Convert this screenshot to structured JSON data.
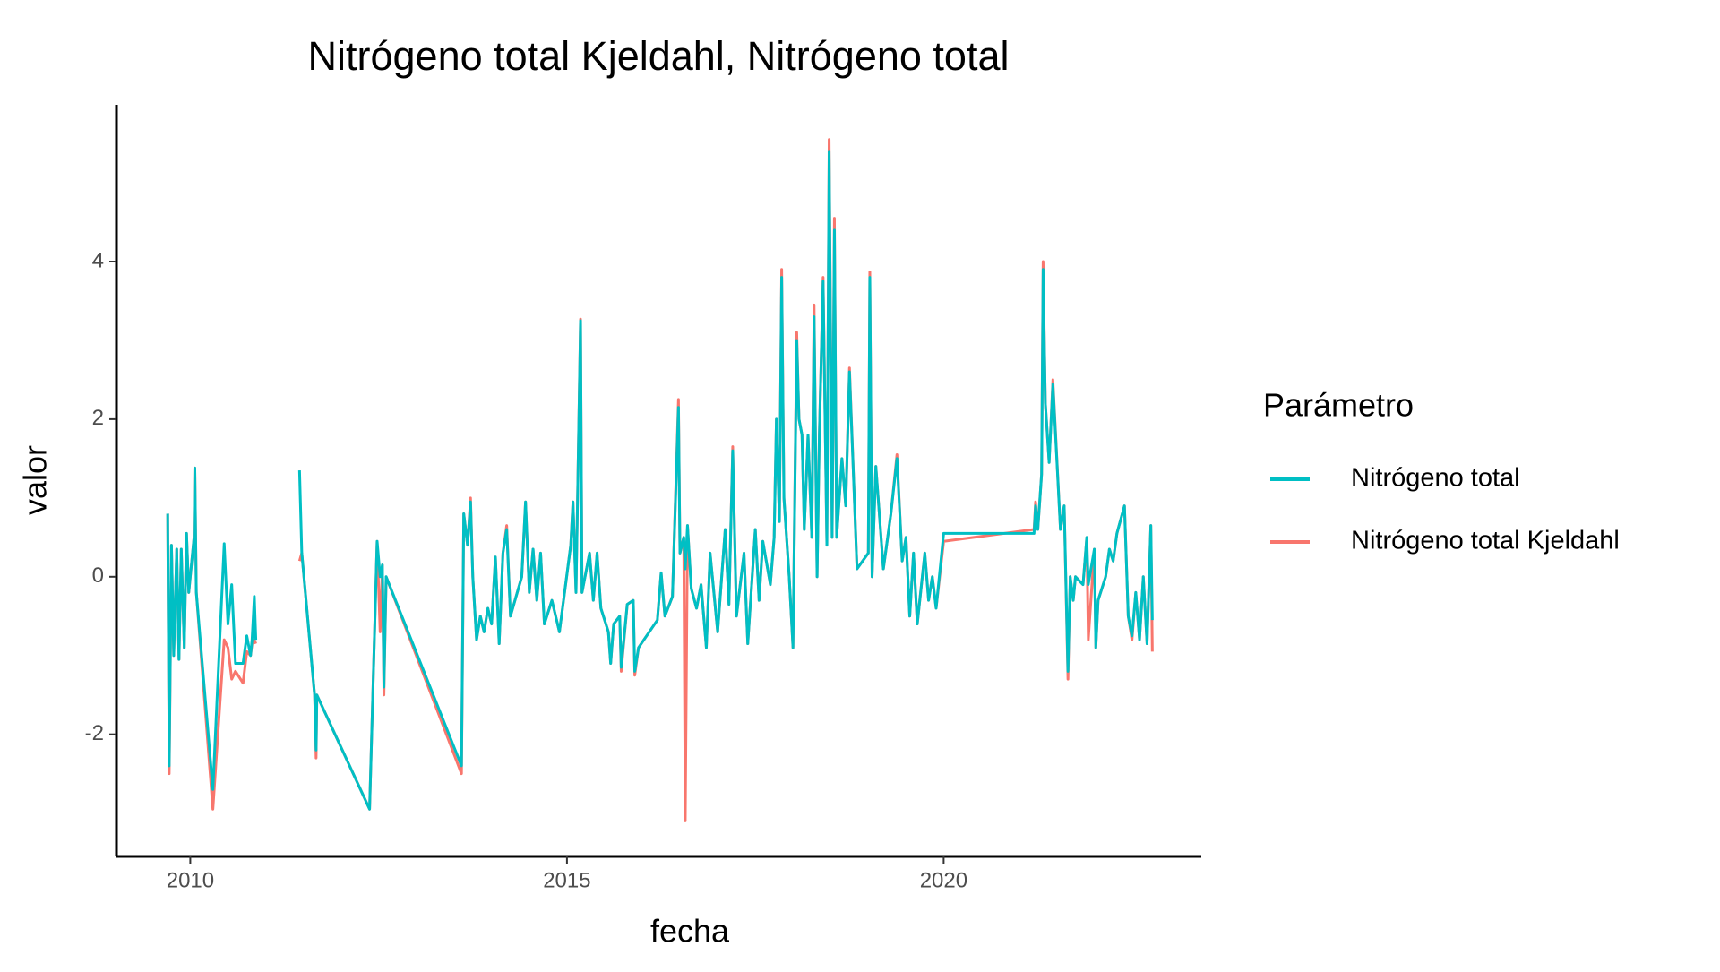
{
  "chart_data": {
    "type": "line",
    "title": "Nitrógeno total Kjeldahl, Nitrógeno total",
    "x_label": "fecha",
    "y_label": "valor",
    "legend_title": "Parámetro",
    "legend_position": "right",
    "grid": false,
    "xlim": [
      2009.02,
      2023.42
    ],
    "ylim": [
      -3.55,
      5.99
    ],
    "xticks": [
      2010,
      2015,
      2020
    ],
    "yticks": [
      -2,
      0,
      2,
      4
    ],
    "x": [
      2009.7,
      2009.72,
      2009.75,
      2009.78,
      2009.82,
      2009.85,
      2009.88,
      2009.92,
      2009.95,
      2009.98,
      2010.05,
      2010.06,
      2010.08,
      2010.3,
      2010.45,
      2010.5,
      2010.55,
      2010.6,
      2010.7,
      2010.75,
      2010.8,
      2010.82,
      2010.85,
      2010.87,
      2011.2,
      2011.45,
      2011.48,
      2011.65,
      2011.67,
      2011.68,
      2012.38,
      2012.48,
      2012.52,
      2012.55,
      2012.57,
      2012.6,
      2013.6,
      2013.63,
      2013.68,
      2013.72,
      2013.75,
      2013.8,
      2013.85,
      2013.9,
      2013.95,
      2014.0,
      2014.05,
      2014.1,
      2014.15,
      2014.2,
      2014.25,
      2014.4,
      2014.45,
      2014.5,
      2014.55,
      2014.6,
      2014.65,
      2014.7,
      2014.8,
      2014.9,
      2015.05,
      2015.08,
      2015.12,
      2015.18,
      2015.2,
      2015.3,
      2015.35,
      2015.4,
      2015.45,
      2015.55,
      2015.58,
      2015.62,
      2015.7,
      2015.72,
      2015.8,
      2015.88,
      2015.9,
      2015.95,
      2016.2,
      2016.25,
      2016.3,
      2016.4,
      2016.48,
      2016.5,
      2016.55,
      2016.57,
      2016.6,
      2016.65,
      2016.72,
      2016.78,
      2016.85,
      2016.9,
      2017.0,
      2017.1,
      2017.15,
      2017.2,
      2017.25,
      2017.35,
      2017.4,
      2017.5,
      2017.55,
      2017.6,
      2017.7,
      2017.75,
      2017.78,
      2017.82,
      2017.85,
      2017.88,
      2017.95,
      2018.0,
      2018.05,
      2018.08,
      2018.12,
      2018.15,
      2018.2,
      2018.25,
      2018.28,
      2018.32,
      2018.35,
      2018.4,
      2018.45,
      2018.48,
      2018.52,
      2018.55,
      2018.58,
      2018.65,
      2018.7,
      2018.75,
      2018.85,
      2019.0,
      2019.02,
      2019.05,
      2019.1,
      2019.2,
      2019.3,
      2019.38,
      2019.45,
      2019.5,
      2019.55,
      2019.6,
      2019.65,
      2019.75,
      2019.8,
      2019.85,
      2019.9,
      2020.0,
      2021.2,
      2021.22,
      2021.25,
      2021.3,
      2021.32,
      2021.35,
      2021.4,
      2021.45,
      2021.55,
      2021.6,
      2021.65,
      2021.68,
      2021.72,
      2021.75,
      2021.85,
      2021.9,
      2021.92,
      2022.0,
      2022.02,
      2022.05,
      2022.15,
      2022.2,
      2022.25,
      2022.3,
      2022.4,
      2022.45,
      2022.5,
      2022.55,
      2022.6,
      2022.65,
      2022.7,
      2022.75,
      2022.77
    ],
    "series": [
      {
        "name": "Nitrógeno total",
        "color": "#00bfc4",
        "values": [
          0.8,
          -2.4,
          0.4,
          -1.0,
          0.35,
          -1.05,
          0.35,
          -0.9,
          0.55,
          -0.2,
          0.5,
          1.38,
          -0.2,
          -2.7,
          0.42,
          -0.6,
          -0.1,
          -1.1,
          -1.1,
          -0.75,
          -1.0,
          -0.8,
          -0.25,
          -0.8,
          null,
          1.35,
          0.3,
          -1.5,
          -2.2,
          -1.5,
          -2.95,
          0.45,
          0.0,
          0.15,
          -1.4,
          0.0,
          -2.4,
          0.8,
          0.4,
          0.95,
          0.0,
          -0.8,
          -0.5,
          -0.7,
          -0.4,
          -0.6,
          0.25,
          -0.85,
          0.3,
          0.6,
          -0.5,
          0.0,
          0.95,
          -0.2,
          0.35,
          -0.3,
          0.3,
          -0.6,
          -0.3,
          -0.7,
          0.4,
          0.95,
          -0.2,
          3.25,
          -0.2,
          0.3,
          -0.3,
          0.3,
          -0.4,
          -0.7,
          -1.1,
          -0.6,
          -0.5,
          -1.15,
          -0.35,
          -0.3,
          -1.2,
          -0.9,
          -0.55,
          0.05,
          -0.5,
          -0.25,
          2.15,
          0.3,
          0.5,
          0.1,
          0.65,
          -0.15,
          -0.4,
          -0.1,
          -0.9,
          0.3,
          -0.7,
          0.6,
          -0.35,
          1.6,
          -0.5,
          0.3,
          -0.85,
          0.6,
          -0.3,
          0.45,
          -0.1,
          0.5,
          2.0,
          0.7,
          3.8,
          1.0,
          0.0,
          -0.9,
          3.0,
          2.0,
          1.8,
          0.6,
          1.8,
          0.5,
          3.3,
          0.0,
          1.8,
          3.75,
          0.4,
          5.4,
          0.5,
          4.4,
          0.5,
          1.5,
          0.9,
          2.6,
          0.1,
          0.3,
          3.8,
          0.0,
          1.4,
          0.1,
          0.8,
          1.5,
          0.2,
          0.5,
          -0.5,
          0.3,
          -0.6,
          0.3,
          -0.3,
          0.0,
          -0.4,
          0.55,
          0.55,
          0.9,
          0.6,
          1.3,
          3.9,
          2.2,
          1.45,
          2.45,
          0.6,
          0.9,
          -1.2,
          0.0,
          -0.3,
          0.0,
          -0.1,
          0.5,
          -0.1,
          0.35,
          -0.9,
          -0.3,
          0.0,
          0.35,
          0.2,
          0.55,
          0.9,
          -0.5,
          -0.75,
          -0.2,
          -0.8,
          0.0,
          -0.85,
          0.65,
          -0.55
        ]
      },
      {
        "name": "Nitrógeno total Kjeldahl",
        "color": "#f8766d",
        "values": [
          0.8,
          -2.5,
          0.4,
          -1.0,
          0.35,
          -1.05,
          0.35,
          -0.9,
          0.55,
          -0.2,
          0.5,
          1.38,
          -0.2,
          -2.95,
          -0.8,
          -0.9,
          -1.3,
          -1.2,
          -1.35,
          -0.95,
          -1.0,
          -0.85,
          -0.8,
          -0.85,
          null,
          0.2,
          0.3,
          -1.5,
          -2.3,
          -1.5,
          -2.95,
          0.45,
          -0.7,
          0.15,
          -1.5,
          0.0,
          -2.5,
          0.8,
          0.4,
          1.0,
          0.0,
          -0.8,
          -0.5,
          -0.7,
          -0.4,
          -0.6,
          0.25,
          -0.85,
          0.3,
          0.65,
          -0.5,
          0.0,
          0.95,
          -0.2,
          0.35,
          -0.3,
          0.3,
          -0.6,
          -0.3,
          -0.7,
          0.4,
          0.95,
          -0.2,
          3.27,
          -0.2,
          0.3,
          -0.3,
          0.3,
          -0.4,
          -0.7,
          -1.1,
          -0.6,
          -0.5,
          -1.2,
          -0.35,
          -0.3,
          -1.25,
          -0.9,
          -0.55,
          0.05,
          -0.5,
          -0.25,
          2.25,
          0.3,
          0.5,
          -3.1,
          0.65,
          -0.15,
          -0.4,
          -0.1,
          -0.9,
          0.3,
          -0.7,
          0.6,
          -0.35,
          1.65,
          -0.5,
          0.3,
          -0.85,
          0.6,
          -0.3,
          0.45,
          -0.1,
          0.5,
          2.0,
          0.7,
          3.9,
          1.0,
          0.0,
          -0.9,
          3.1,
          2.0,
          1.8,
          0.6,
          1.8,
          0.5,
          3.45,
          0.0,
          1.8,
          3.8,
          0.4,
          5.55,
          0.5,
          4.55,
          0.5,
          1.5,
          0.9,
          2.65,
          0.1,
          0.3,
          3.87,
          0.0,
          1.4,
          0.1,
          0.8,
          1.55,
          0.2,
          0.5,
          -0.5,
          0.3,
          -0.6,
          0.3,
          -0.3,
          0.0,
          -0.4,
          0.45,
          0.6,
          0.95,
          0.6,
          1.3,
          4.0,
          2.2,
          1.45,
          2.5,
          0.6,
          0.9,
          -1.3,
          0.0,
          -0.3,
          0.0,
          -0.1,
          0.5,
          -0.8,
          0.35,
          -0.9,
          -0.3,
          0.0,
          0.35,
          0.2,
          0.55,
          0.9,
          -0.5,
          -0.8,
          -0.2,
          -0.8,
          0.0,
          -0.85,
          0.65,
          -0.95
        ]
      }
    ]
  }
}
